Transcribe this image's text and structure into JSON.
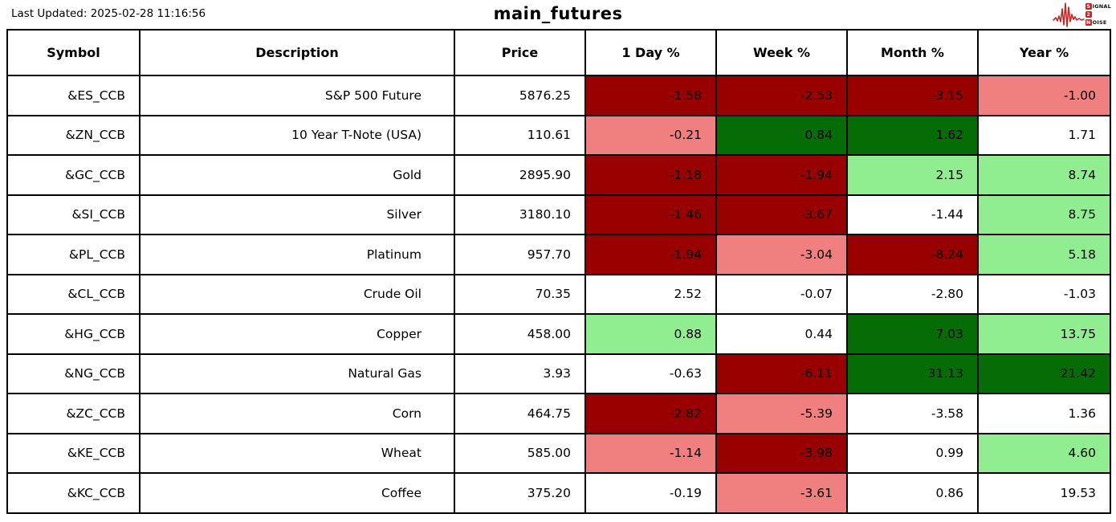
{
  "header": {
    "last_updated": "Last Updated: 2025-02-28 11:16:56",
    "title": "main_futures",
    "logo": {
      "s": "S",
      "ignal": "IGNAL",
      "two": "2",
      "n": "N",
      "oise": "OISE",
      "accent_color": "#c22626"
    }
  },
  "colors": {
    "dr": "#990000",
    "lr": "#F08080",
    "dg": "#066D06",
    "lg": "#90EE90",
    "w": "#FFFFFF"
  },
  "table": {
    "columns": [
      "Symbol",
      "Description",
      "Price",
      "1 Day %",
      "Week %",
      "Month %",
      "Year %"
    ],
    "rows": [
      {
        "symbol": "&ES_CCB",
        "description": "S&P 500 Future",
        "price": "5876.25",
        "day": "-1.58",
        "day_bg": "dr",
        "week": "-2.53",
        "week_bg": "dr",
        "month": "-3.15",
        "month_bg": "dr",
        "year": "-1.00",
        "year_bg": "lr"
      },
      {
        "symbol": "&ZN_CCB",
        "description": "10 Year T-Note (USA)",
        "price": "110.61",
        "day": "-0.21",
        "day_bg": "lr",
        "week": "0.84",
        "week_bg": "dg",
        "month": "1.62",
        "month_bg": "dg",
        "year": "1.71",
        "year_bg": "w"
      },
      {
        "symbol": "&GC_CCB",
        "description": "Gold",
        "price": "2895.90",
        "day": "-1.18",
        "day_bg": "dr",
        "week": "-1.94",
        "week_bg": "dr",
        "month": "2.15",
        "month_bg": "lg",
        "year": "8.74",
        "year_bg": "lg"
      },
      {
        "symbol": "&SI_CCB",
        "description": "Silver",
        "price": "3180.10",
        "day": "-1.46",
        "day_bg": "dr",
        "week": "-3.67",
        "week_bg": "dr",
        "month": "-1.44",
        "month_bg": "w",
        "year": "8.75",
        "year_bg": "lg"
      },
      {
        "symbol": "&PL_CCB",
        "description": "Platinum",
        "price": "957.70",
        "day": "-1.94",
        "day_bg": "dr",
        "week": "-3.04",
        "week_bg": "lr",
        "month": "-8.24",
        "month_bg": "dr",
        "year": "5.18",
        "year_bg": "lg"
      },
      {
        "symbol": "&CL_CCB",
        "description": "Crude Oil",
        "price": "70.35",
        "day": "2.52",
        "day_bg": "w",
        "week": "-0.07",
        "week_bg": "w",
        "month": "-2.80",
        "month_bg": "w",
        "year": "-1.03",
        "year_bg": "w"
      },
      {
        "symbol": "&HG_CCB",
        "description": "Copper",
        "price": "458.00",
        "day": "0.88",
        "day_bg": "lg",
        "week": "0.44",
        "week_bg": "w",
        "month": "7.03",
        "month_bg": "dg",
        "year": "13.75",
        "year_bg": "lg"
      },
      {
        "symbol": "&NG_CCB",
        "description": "Natural Gas",
        "price": "3.93",
        "day": "-0.63",
        "day_bg": "w",
        "week": "-6.11",
        "week_bg": "dr",
        "month": "31.13",
        "month_bg": "dg",
        "year": "21.42",
        "year_bg": "dg"
      },
      {
        "symbol": "&ZC_CCB",
        "description": "Corn",
        "price": "464.75",
        "day": "-2.82",
        "day_bg": "dr",
        "week": "-5.39",
        "week_bg": "lr",
        "month": "-3.58",
        "month_bg": "w",
        "year": "1.36",
        "year_bg": "w"
      },
      {
        "symbol": "&KE_CCB",
        "description": "Wheat",
        "price": "585.00",
        "day": "-1.14",
        "day_bg": "lr",
        "week": "-3.98",
        "week_bg": "dr",
        "month": "0.99",
        "month_bg": "w",
        "year": "4.60",
        "year_bg": "lg"
      },
      {
        "symbol": "&KC_CCB",
        "description": "Coffee",
        "price": "375.20",
        "day": "-0.19",
        "day_bg": "w",
        "week": "-3.61",
        "week_bg": "lr",
        "month": "0.86",
        "month_bg": "w",
        "year": "19.53",
        "year_bg": "w"
      }
    ]
  }
}
